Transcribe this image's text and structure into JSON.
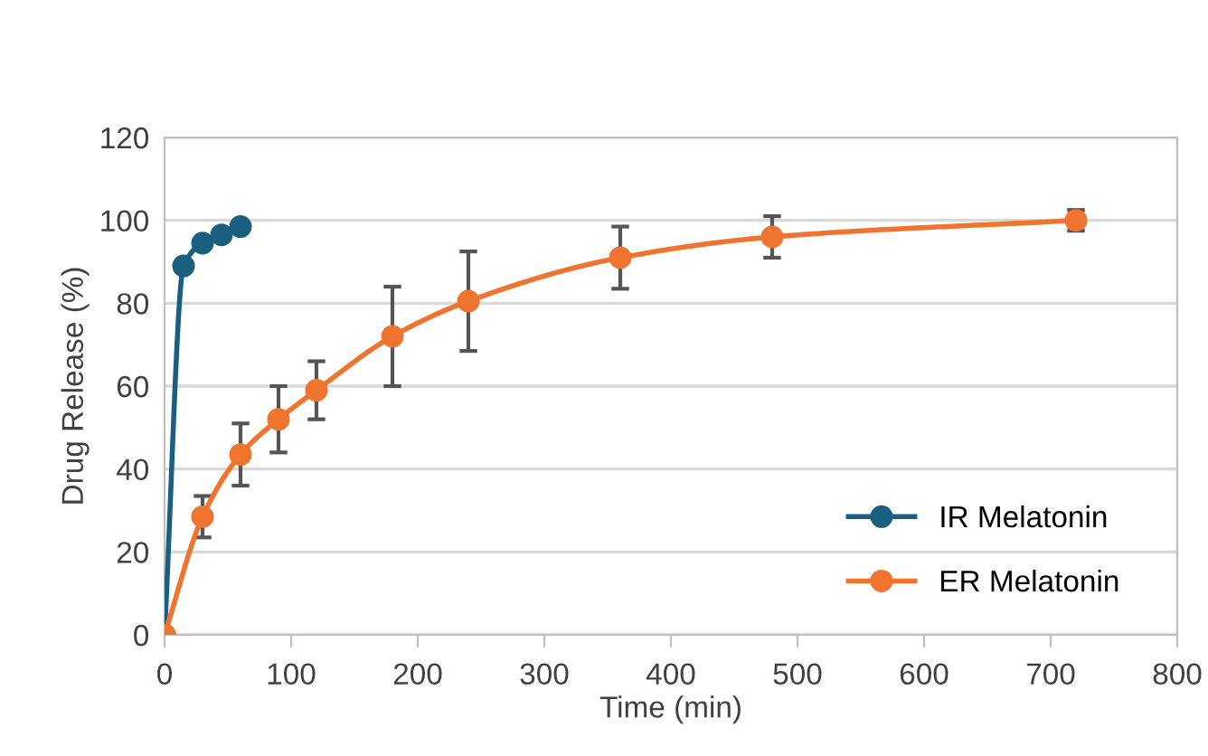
{
  "chart_data": {
    "type": "line",
    "xlabel": "Time (min)",
    "ylabel": "Drug Release (%)",
    "xlim": [
      0,
      800
    ],
    "xticks": [
      0,
      100,
      200,
      300,
      400,
      500,
      600,
      700,
      800
    ],
    "ylim": [
      0,
      120
    ],
    "yticks": [
      0,
      20,
      40,
      60,
      80,
      100,
      120
    ],
    "grid": "y",
    "legend": "bottom right",
    "marker": "circle",
    "line_style": "solid",
    "series": [
      {
        "name": "IR Melatonin",
        "color": "#1a5e80",
        "x": [
          0,
          15,
          30,
          45,
          60
        ],
        "values": [
          0,
          89,
          94.5,
          96.5,
          98.5
        ]
      },
      {
        "name": "ER Melatonin",
        "color": "#ee7430",
        "x": [
          0,
          30,
          60,
          90,
          120,
          180,
          240,
          360,
          480,
          720
        ],
        "values": [
          0,
          28.5,
          43.5,
          52,
          59,
          72,
          80.5,
          91,
          96,
          100
        ],
        "errors": [
          null,
          5,
          7.5,
          8,
          7,
          12,
          12,
          7.5,
          5,
          2.5
        ]
      }
    ]
  }
}
